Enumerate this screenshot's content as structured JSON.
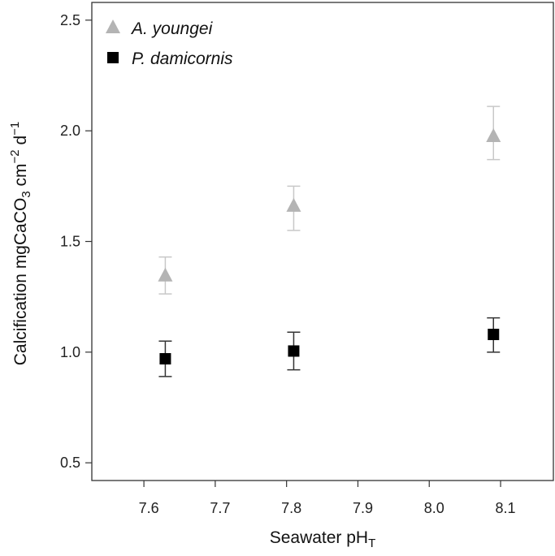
{
  "chart_data": {
    "type": "scatter",
    "title": "",
    "xlabel": "Seawater pH",
    "xlabel_subscript": "T",
    "ylabel_parts": [
      "Calcification mgCaCO",
      "3",
      " cm",
      "−2",
      " d",
      "−1"
    ],
    "xlim": [
      7.527,
      8.174
    ],
    "ylim": [
      0.42,
      2.58
    ],
    "x_ticks": [
      7.6,
      7.7,
      7.8,
      7.9,
      8.0,
      8.1
    ],
    "x_tick_labels": [
      "7.6",
      "7.7",
      "7.8",
      "7.9",
      "8.0",
      "8.1"
    ],
    "y_ticks": [
      0.5,
      1.0,
      1.5,
      2.0,
      2.5
    ],
    "y_tick_labels": [
      "0.5",
      "1.0",
      "1.5",
      "2.0",
      "2.5"
    ],
    "grid": false,
    "legend_placement": "top-left",
    "series": [
      {
        "name": "A. youngei",
        "marker": "triangle",
        "color": "#b4b4b4",
        "errorbar_color": "#c8c8c8",
        "x": [
          7.63,
          7.81,
          8.09
        ],
        "y": [
          1.345,
          1.66,
          1.975
        ],
        "y_low": [
          1.263,
          1.55,
          1.87
        ],
        "y_high": [
          1.43,
          1.75,
          2.11
        ]
      },
      {
        "name": "P. damicornis",
        "marker": "square",
        "color": "#000000",
        "errorbar_color": "#333333",
        "x": [
          7.63,
          7.81,
          8.09
        ],
        "y": [
          0.97,
          1.005,
          1.08
        ],
        "y_low": [
          0.89,
          0.92,
          1.0
        ],
        "y_high": [
          1.05,
          1.09,
          1.155
        ]
      }
    ]
  }
}
